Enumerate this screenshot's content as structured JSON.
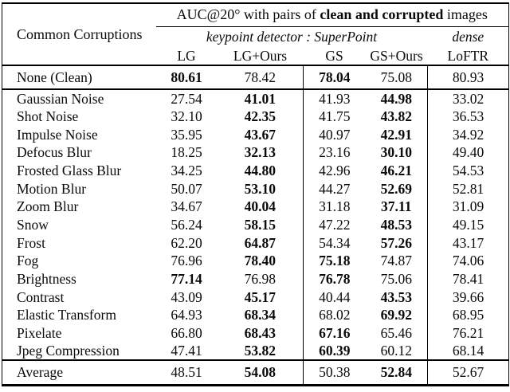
{
  "table": {
    "corner_label": "Common Corruptions",
    "title": {
      "prefix": "AUC@20° with pairs of ",
      "bold": "clean and corrupted",
      "suffix": " images"
    },
    "group_headers": [
      "keypoint detector : SuperPoint",
      "dense"
    ],
    "columns": [
      "LG",
      "LG+Ours",
      "GS",
      "GS+Ours",
      "LoFTR"
    ],
    "clean_rows": [
      {
        "label": "None (Clean)",
        "values": [
          "80.61",
          "78.42",
          "78.04",
          "75.08",
          "80.93"
        ],
        "bold": [
          true,
          false,
          true,
          false,
          false
        ]
      }
    ],
    "body_rows": [
      {
        "label": "Gaussian Noise",
        "values": [
          "27.54",
          "41.01",
          "41.93",
          "44.98",
          "33.02"
        ],
        "bold": [
          false,
          true,
          false,
          true,
          false
        ]
      },
      {
        "label": "Shot Noise",
        "values": [
          "32.10",
          "42.35",
          "41.75",
          "43.82",
          "36.53"
        ],
        "bold": [
          false,
          true,
          false,
          true,
          false
        ]
      },
      {
        "label": "Impulse Noise",
        "values": [
          "35.95",
          "43.67",
          "40.97",
          "42.91",
          "34.92"
        ],
        "bold": [
          false,
          true,
          false,
          true,
          false
        ]
      },
      {
        "label": "Defocus Blur",
        "values": [
          "18.25",
          "32.13",
          "23.16",
          "30.10",
          "49.40"
        ],
        "bold": [
          false,
          true,
          false,
          true,
          false
        ]
      },
      {
        "label": "Frosted Glass Blur",
        "values": [
          "34.25",
          "44.80",
          "42.96",
          "46.21",
          "54.53"
        ],
        "bold": [
          false,
          true,
          false,
          true,
          false
        ]
      },
      {
        "label": "Motion Blur",
        "values": [
          "50.07",
          "53.10",
          "44.27",
          "52.69",
          "52.81"
        ],
        "bold": [
          false,
          true,
          false,
          true,
          false
        ]
      },
      {
        "label": "Zoom Blur",
        "values": [
          "34.67",
          "40.04",
          "31.18",
          "37.11",
          "31.09"
        ],
        "bold": [
          false,
          true,
          false,
          true,
          false
        ]
      },
      {
        "label": "Snow",
        "values": [
          "56.24",
          "58.15",
          "47.22",
          "48.53",
          "49.15"
        ],
        "bold": [
          false,
          true,
          false,
          true,
          false
        ]
      },
      {
        "label": "Frost",
        "values": [
          "62.20",
          "64.87",
          "54.34",
          "57.26",
          "43.17"
        ],
        "bold": [
          false,
          true,
          false,
          true,
          false
        ]
      },
      {
        "label": "Fog",
        "values": [
          "76.96",
          "78.40",
          "75.18",
          "74.87",
          "74.06"
        ],
        "bold": [
          false,
          true,
          true,
          false,
          false
        ]
      },
      {
        "label": "Brightness",
        "values": [
          "77.14",
          "76.98",
          "76.78",
          "75.06",
          "78.41"
        ],
        "bold": [
          true,
          false,
          true,
          false,
          false
        ]
      },
      {
        "label": "Contrast",
        "values": [
          "43.09",
          "45.17",
          "40.44",
          "43.53",
          "39.66"
        ],
        "bold": [
          false,
          true,
          false,
          true,
          false
        ]
      },
      {
        "label": "Elastic Transform",
        "values": [
          "64.93",
          "68.34",
          "68.02",
          "69.92",
          "68.95"
        ],
        "bold": [
          false,
          true,
          false,
          true,
          false
        ]
      },
      {
        "label": "Pixelate",
        "values": [
          "66.80",
          "68.43",
          "67.16",
          "65.46",
          "76.21"
        ],
        "bold": [
          false,
          true,
          true,
          false,
          false
        ]
      },
      {
        "label": "Jpeg Compression",
        "values": [
          "47.41",
          "53.82",
          "60.39",
          "60.12",
          "68.14"
        ],
        "bold": [
          false,
          true,
          true,
          false,
          false
        ]
      }
    ],
    "average_rows": [
      {
        "label": "Average",
        "values": [
          "48.51",
          "54.08",
          "50.38",
          "52.84",
          "52.67"
        ],
        "bold": [
          false,
          true,
          false,
          true,
          false
        ]
      }
    ]
  },
  "colors": {
    "text": "#0a0a0a",
    "background": "#ffffff",
    "rule": "#000000"
  }
}
